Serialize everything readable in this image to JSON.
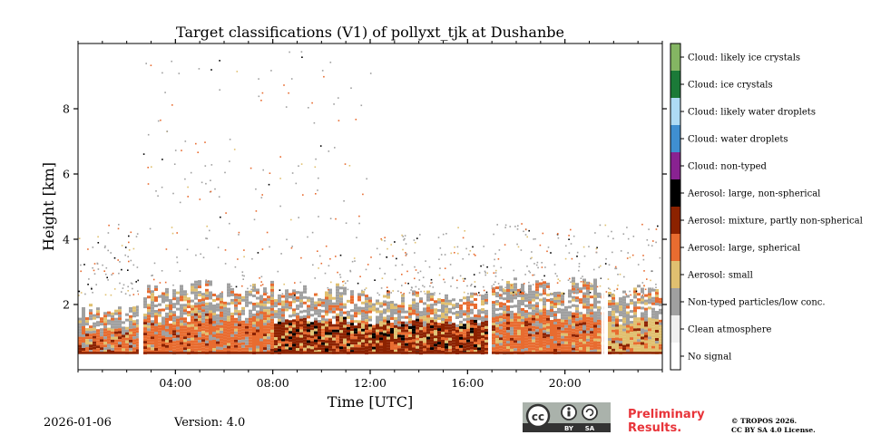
{
  "chart_data": {
    "type": "heatmap",
    "title": "Target classifications (V1) of pollyxt_tjk at Dushanbe",
    "xlabel": "Time [UTC]",
    "ylabel": "Height [km]",
    "xlim": [
      0,
      24
    ],
    "ylim": [
      0,
      10
    ],
    "x_ticks": [
      {
        "value": 4,
        "label": "04:00"
      },
      {
        "value": 8,
        "label": "08:00"
      },
      {
        "value": 12,
        "label": "12:00"
      },
      {
        "value": 16,
        "label": "16:00"
      },
      {
        "value": 20,
        "label": "20:00"
      }
    ],
    "y_ticks": [
      {
        "value": 2,
        "label": "2"
      },
      {
        "value": 4,
        "label": "4"
      },
      {
        "value": 6,
        "label": "6"
      },
      {
        "value": 8,
        "label": "8"
      }
    ],
    "classes": [
      {
        "id": 0,
        "label": "No signal",
        "color": "#ffffff"
      },
      {
        "id": 1,
        "label": "Clean atmosphere",
        "color": "#f0f0f0"
      },
      {
        "id": 2,
        "label": "Non-typed particles/low conc.",
        "color": "#a0a0a0"
      },
      {
        "id": 3,
        "label": "Aerosol: small",
        "color": "#e0c070"
      },
      {
        "id": 4,
        "label": "Aerosol: large, spherical",
        "color": "#e86c30"
      },
      {
        "id": 5,
        "label": "Aerosol: mixture, partly non-spherical",
        "color": "#8c2200"
      },
      {
        "id": 6,
        "label": "Aerosol: large, non-spherical",
        "color": "#000000"
      },
      {
        "id": 7,
        "label": "Cloud: non-typed",
        "color": "#892291"
      },
      {
        "id": 8,
        "label": "Cloud: water droplets",
        "color": "#3f8fd1"
      },
      {
        "id": 9,
        "label": "Cloud: likely water droplets",
        "color": "#aedbf5"
      },
      {
        "id": 10,
        "label": "Cloud: ice crystals",
        "color": "#1b7a38"
      },
      {
        "id": 11,
        "label": "Cloud: likely ice crystals",
        "color": "#84b563"
      }
    ],
    "data_gaps_utc": [
      2.55,
      16.9,
      21.55
    ],
    "layer_summary": [
      {
        "from_h": 0,
        "to_h": 2.55,
        "dominant": "Aerosol: large, spherical",
        "top_km": 1.8
      },
      {
        "from_h": 2.55,
        "to_h": 8.0,
        "dominant": "Aerosol: large, spherical",
        "top_km": 2.5
      },
      {
        "from_h": 8.0,
        "to_h": 11.0,
        "dominant": "Aerosol: mixture, partly non-spherical",
        "top_km": 2.4
      },
      {
        "from_h": 11.0,
        "to_h": 16.9,
        "dominant": "Aerosol: mixture, partly non-spherical",
        "top_km": 2.2
      },
      {
        "from_h": 16.9,
        "to_h": 21.55,
        "dominant": "Aerosol: large, spherical",
        "top_km": 2.6
      },
      {
        "from_h": 21.55,
        "to_h": 24.0,
        "dominant": "Aerosol: small",
        "top_km": 2.4
      }
    ]
  },
  "footer": {
    "date": "2026-01-06",
    "version": "Version: 4.0",
    "license_badge": {
      "cc": "cc",
      "by": "BY",
      "sa": "SA"
    },
    "preliminary_line1": "Preliminary",
    "preliminary_line2": "Results.",
    "copyright_line1": "© TROPOS 2026.",
    "copyright_line2": "CC BY SA 4.0 License."
  },
  "colors": {
    "preliminary": "#e8343a",
    "badge_dark": "#333333",
    "badge_light": "#aab2ab"
  }
}
